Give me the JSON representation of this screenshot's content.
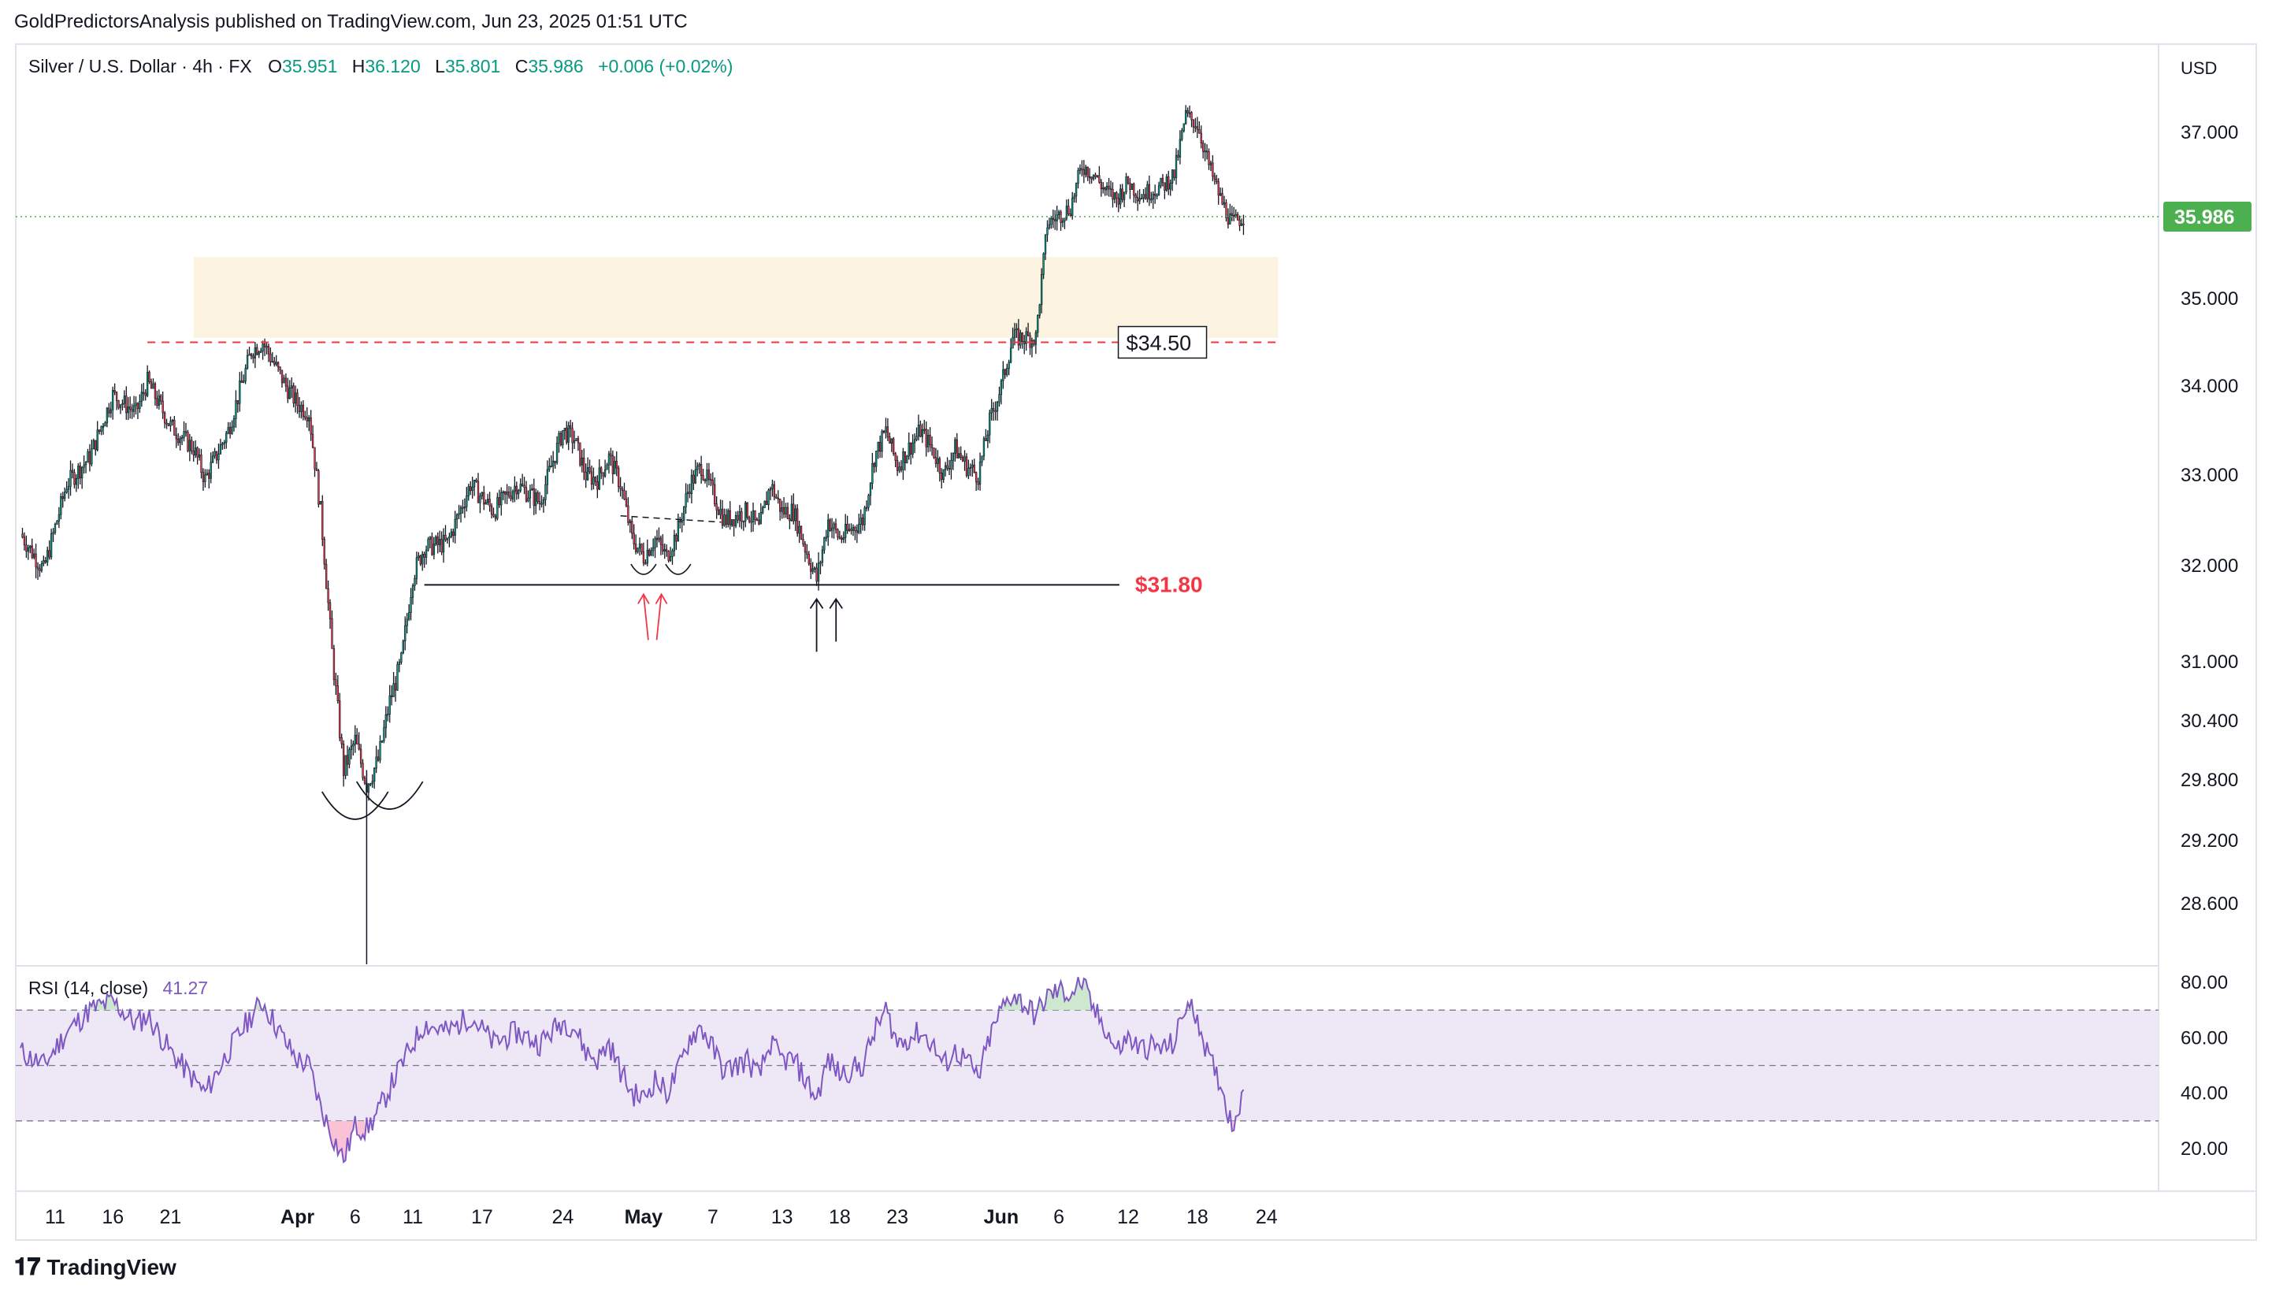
{
  "header": {
    "published": "GoldPredictorsAnalysis published on TradingView.com, Jun 23, 2025 01:51 UTC"
  },
  "legend": {
    "symbol": "Silver / U.S. Dollar · 4h · FX",
    "o_label": "O",
    "o": "35.951",
    "h_label": "H",
    "h": "36.120",
    "l_label": "L",
    "l": "35.801",
    "c_label": "C",
    "c": "35.986",
    "change": "+0.006 (+0.02%)"
  },
  "currency": "USD",
  "last_price": "35.986",
  "footer": {
    "brand": "TradingView",
    "logo_glyph": "𝟏𝟕"
  },
  "annotations": {
    "resistance_label": "$34.50",
    "support_label": "$31.80"
  },
  "rsi_legend": {
    "name": "RSI (14, close)",
    "value": "41.27"
  },
  "colors": {
    "up": "#089981",
    "down": "#f23645",
    "rsi": "#7e57c2",
    "zone": "#fdf3e1",
    "support_text": "#f23645",
    "last_badge": "#4caf50"
  },
  "chart_data": {
    "type": "candlestick",
    "timeframe": "4h",
    "y_ticks": [
      37.0,
      35.0,
      34.0,
      33.0,
      32.0,
      31.0,
      30.4,
      29.8,
      29.2,
      28.6
    ],
    "y_tick_labels": [
      "37.000",
      "35.000",
      "34.000",
      "33.000",
      "32.000",
      "31.000",
      "30.400",
      "29.800",
      "29.200",
      "28.600"
    ],
    "x_tick_labels": [
      "11",
      "16",
      "21",
      "Apr",
      "6",
      "11",
      "17",
      "24",
      "May",
      "7",
      "13",
      "18",
      "23",
      "Jun",
      "6",
      "12",
      "18",
      "24"
    ],
    "x_tick_dates": [
      "2025-03-11",
      "2025-03-16",
      "2025-03-21",
      "2025-04-01",
      "2025-04-06",
      "2025-04-11",
      "2025-04-17",
      "2025-04-24",
      "2025-05-01",
      "2025-05-07",
      "2025-05-13",
      "2025-05-18",
      "2025-05-23",
      "2025-06-01",
      "2025-06-06",
      "2025-06-12",
      "2025-06-18",
      "2025-06-24"
    ],
    "price_path": [
      [
        "2025-03-08",
        32.35
      ],
      [
        "2025-03-10",
        31.95
      ],
      [
        "2025-03-12",
        32.9
      ],
      [
        "2025-03-14",
        33.2
      ],
      [
        "2025-03-16",
        33.9
      ],
      [
        "2025-03-18",
        33.7
      ],
      [
        "2025-03-19",
        34.05
      ],
      [
        "2025-03-21",
        33.55
      ],
      [
        "2025-03-23",
        33.3
      ],
      [
        "2025-03-24",
        32.95
      ],
      [
        "2025-03-26",
        33.5
      ],
      [
        "2025-03-28",
        34.4
      ],
      [
        "2025-03-29",
        34.5
      ],
      [
        "2025-03-31",
        34.0
      ],
      [
        "2025-04-01",
        33.8
      ],
      [
        "2025-04-02",
        33.7
      ],
      [
        "2025-04-03",
        32.6
      ],
      [
        "2025-04-04",
        31.1
      ],
      [
        "2025-04-05",
        29.9
      ],
      [
        "2025-04-06",
        30.2
      ],
      [
        "2025-04-07",
        29.75
      ],
      [
        "2025-04-08",
        30.0
      ],
      [
        "2025-04-09",
        30.6
      ],
      [
        "2025-04-10",
        31.0
      ],
      [
        "2025-04-11",
        31.9
      ],
      [
        "2025-04-12",
        32.2
      ],
      [
        "2025-04-14",
        32.25
      ],
      [
        "2025-04-16",
        32.9
      ],
      [
        "2025-04-18",
        32.6
      ],
      [
        "2025-04-20",
        32.9
      ],
      [
        "2025-04-22",
        32.7
      ],
      [
        "2025-04-24",
        33.5
      ],
      [
        "2025-04-25",
        33.4
      ],
      [
        "2025-04-26",
        33.0
      ],
      [
        "2025-04-27",
        32.95
      ],
      [
        "2025-04-28",
        33.2
      ],
      [
        "2025-04-29",
        32.9
      ],
      [
        "2025-04-30",
        32.3
      ],
      [
        "2025-05-01",
        32.1
      ],
      [
        "2025-05-02",
        32.3
      ],
      [
        "2025-05-03",
        32.1
      ],
      [
        "2025-05-04",
        32.4
      ],
      [
        "2025-05-05",
        32.9
      ],
      [
        "2025-05-06",
        33.1
      ],
      [
        "2025-05-07",
        32.8
      ],
      [
        "2025-05-08",
        32.5
      ],
      [
        "2025-05-10",
        32.6
      ],
      [
        "2025-05-11",
        32.4
      ],
      [
        "2025-05-12",
        32.9
      ],
      [
        "2025-05-13",
        32.6
      ],
      [
        "2025-05-14",
        32.6
      ],
      [
        "2025-05-15",
        32.2
      ],
      [
        "2025-05-16",
        31.85
      ],
      [
        "2025-05-17",
        32.5
      ],
      [
        "2025-05-18",
        32.3
      ],
      [
        "2025-05-20",
        32.5
      ],
      [
        "2025-05-21",
        33.2
      ],
      [
        "2025-05-22",
        33.5
      ],
      [
        "2025-05-23",
        33.1
      ],
      [
        "2025-05-24",
        33.3
      ],
      [
        "2025-05-25",
        33.5
      ],
      [
        "2025-05-26",
        33.3
      ],
      [
        "2025-05-27",
        33.0
      ],
      [
        "2025-05-28",
        33.3
      ],
      [
        "2025-05-29",
        33.1
      ],
      [
        "2025-05-30",
        33.0
      ],
      [
        "2025-05-31",
        33.6
      ],
      [
        "2025-06-01",
        34.0
      ],
      [
        "2025-06-02",
        34.55
      ],
      [
        "2025-06-03",
        34.55
      ],
      [
        "2025-06-04",
        34.55
      ],
      [
        "2025-06-05",
        35.9
      ],
      [
        "2025-06-06",
        36.0
      ],
      [
        "2025-06-07",
        36.1
      ],
      [
        "2025-06-08",
        36.6
      ],
      [
        "2025-06-09",
        36.5
      ],
      [
        "2025-06-10",
        36.3
      ],
      [
        "2025-06-11",
        36.2
      ],
      [
        "2025-06-12",
        36.4
      ],
      [
        "2025-06-13",
        36.25
      ],
      [
        "2025-06-14",
        36.3
      ],
      [
        "2025-06-15",
        36.35
      ],
      [
        "2025-06-16",
        36.5
      ],
      [
        "2025-06-17",
        37.2
      ],
      [
        "2025-06-18",
        37.1
      ],
      [
        "2025-06-19",
        36.6
      ],
      [
        "2025-06-20",
        36.2
      ],
      [
        "2025-06-21",
        35.9
      ],
      [
        "2025-06-22",
        35.986
      ]
    ],
    "resistance_zone": {
      "low": 34.55,
      "high": 35.5,
      "start": "2025-03-23",
      "end": "2025-06-25"
    },
    "resistance_level": 34.5,
    "support_level": 31.8,
    "rsi": {
      "y_ticks": [
        80,
        60,
        40,
        20
      ],
      "y_tick_labels": [
        "80.00",
        "60.00",
        "40.00",
        "20.00"
      ],
      "band_high": 70,
      "mid": 50,
      "band_low": 30,
      "path": [
        [
          "2025-03-08",
          55
        ],
        [
          "2025-03-10",
          50
        ],
        [
          "2025-03-12",
          62
        ],
        [
          "2025-03-14",
          70
        ],
        [
          "2025-03-16",
          73
        ],
        [
          "2025-03-18",
          65
        ],
        [
          "2025-03-19",
          68
        ],
        [
          "2025-03-21",
          55
        ],
        [
          "2025-03-23",
          45
        ],
        [
          "2025-03-24",
          40
        ],
        [
          "2025-03-26",
          55
        ],
        [
          "2025-03-28",
          68
        ],
        [
          "2025-03-29",
          73
        ],
        [
          "2025-03-31",
          58
        ],
        [
          "2025-04-01",
          52
        ],
        [
          "2025-04-02",
          50
        ],
        [
          "2025-04-03",
          35
        ],
        [
          "2025-04-04",
          25
        ],
        [
          "2025-04-05",
          16
        ],
        [
          "2025-04-06",
          28
        ],
        [
          "2025-04-07",
          27
        ],
        [
          "2025-04-08",
          33
        ],
        [
          "2025-04-09",
          42
        ],
        [
          "2025-04-10",
          50
        ],
        [
          "2025-04-11",
          58
        ],
        [
          "2025-04-12",
          65
        ],
        [
          "2025-04-14",
          62
        ],
        [
          "2025-04-16",
          68
        ],
        [
          "2025-04-18",
          58
        ],
        [
          "2025-04-20",
          62
        ],
        [
          "2025-04-22",
          58
        ],
        [
          "2025-04-24",
          66
        ],
        [
          "2025-04-25",
          64
        ],
        [
          "2025-04-26",
          55
        ],
        [
          "2025-04-27",
          52
        ],
        [
          "2025-04-28",
          58
        ],
        [
          "2025-04-29",
          48
        ],
        [
          "2025-04-30",
          40
        ],
        [
          "2025-05-01",
          38
        ],
        [
          "2025-05-02",
          45
        ],
        [
          "2025-05-03",
          40
        ],
        [
          "2025-05-04",
          48
        ],
        [
          "2025-05-05",
          60
        ],
        [
          "2025-05-06",
          64
        ],
        [
          "2025-05-07",
          56
        ],
        [
          "2025-05-08",
          48
        ],
        [
          "2025-05-10",
          52
        ],
        [
          "2025-05-11",
          46
        ],
        [
          "2025-05-12",
          58
        ],
        [
          "2025-05-13",
          52
        ],
        [
          "2025-05-14",
          52
        ],
        [
          "2025-05-15",
          45
        ],
        [
          "2025-05-16",
          38
        ],
        [
          "2025-05-17",
          52
        ],
        [
          "2025-05-18",
          47
        ],
        [
          "2025-05-20",
          50
        ],
        [
          "2025-05-21",
          62
        ],
        [
          "2025-05-22",
          70
        ],
        [
          "2025-05-23",
          58
        ],
        [
          "2025-05-24",
          60
        ],
        [
          "2025-05-25",
          62
        ],
        [
          "2025-05-26",
          58
        ],
        [
          "2025-05-27",
          50
        ],
        [
          "2025-05-28",
          55
        ],
        [
          "2025-05-29",
          52
        ],
        [
          "2025-05-30",
          45
        ],
        [
          "2025-05-31",
          60
        ],
        [
          "2025-06-01",
          70
        ],
        [
          "2025-06-02",
          76
        ],
        [
          "2025-06-03",
          72
        ],
        [
          "2025-06-04",
          68
        ],
        [
          "2025-06-05",
          75
        ],
        [
          "2025-06-06",
          77
        ],
        [
          "2025-06-07",
          76
        ],
        [
          "2025-06-08",
          80
        ],
        [
          "2025-06-09",
          70
        ],
        [
          "2025-06-10",
          64
        ],
        [
          "2025-06-11",
          55
        ],
        [
          "2025-06-12",
          60
        ],
        [
          "2025-06-13",
          56
        ],
        [
          "2025-06-14",
          57
        ],
        [
          "2025-06-15",
          56
        ],
        [
          "2025-06-16",
          58
        ],
        [
          "2025-06-17",
          72
        ],
        [
          "2025-06-18",
          68
        ],
        [
          "2025-06-19",
          52
        ],
        [
          "2025-06-20",
          44
        ],
        [
          "2025-06-21",
          28
        ],
        [
          "2025-06-22",
          41.27
        ]
      ]
    }
  }
}
